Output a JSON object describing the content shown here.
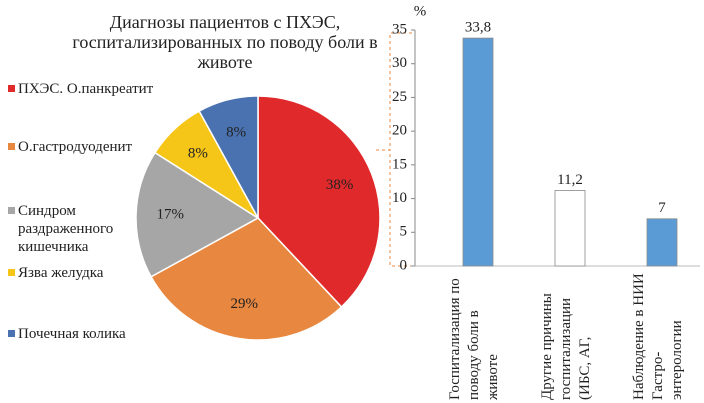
{
  "chart_data": [
    {
      "type": "pie",
      "title": "Диагнозы пациентов с ПХЭС, госпитализированных по поводу боли в животе",
      "categories": [
        "ПХЭС. О.панкреатит",
        "О.гастродуоденит",
        "Синдром раздраженного кишечника",
        "Язва желудка",
        "Почечная колика"
      ],
      "values": [
        38,
        29,
        17,
        8,
        8
      ],
      "value_labels": [
        "38%",
        "29%",
        "17%",
        "8%",
        "8%"
      ],
      "colors": [
        "#e0292b",
        "#e8873f",
        "#a6a6a6",
        "#f5c518",
        "#4a72b0"
      ]
    },
    {
      "type": "bar",
      "ylabel": "%",
      "categories": [
        "Госпитализация по поводу боли в животе",
        "Другие причины госпитализации (ИБС, АГ,",
        "Наблюдение в НИИ Гастро-энтерологии"
      ],
      "values": [
        33.8,
        11.2,
        7
      ],
      "value_labels": [
        "33,8",
        "11,2",
        "7"
      ],
      "colors": [
        "#5b9bd5",
        "#ffffff",
        "#5b9bd5"
      ],
      "ylim": [
        0,
        35
      ],
      "yticks": [
        0,
        5,
        10,
        15,
        20,
        25,
        30,
        35
      ]
    }
  ]
}
